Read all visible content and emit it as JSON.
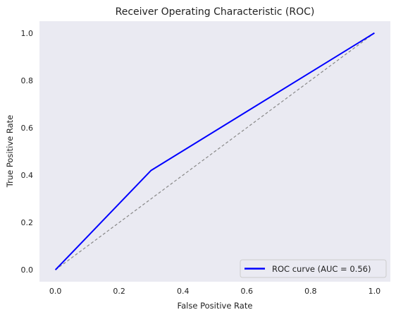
{
  "chart_data": {
    "type": "line",
    "title": "Receiver Operating Characteristic (ROC)",
    "xlabel": "False Positive Rate",
    "ylabel": "True Positive Rate",
    "xlim": [
      -0.05,
      1.05
    ],
    "ylim": [
      -0.05,
      1.05
    ],
    "xticks": [
      0.0,
      0.2,
      0.4,
      0.6,
      0.8,
      1.0
    ],
    "xtick_labels": [
      "0.0",
      "0.2",
      "0.4",
      "0.6",
      "0.8",
      "1.0"
    ],
    "yticks": [
      0.0,
      0.2,
      0.4,
      0.6,
      0.8,
      1.0
    ],
    "ytick_labels": [
      "0.0",
      "0.2",
      "0.4",
      "0.6",
      "0.8",
      "1.0"
    ],
    "grid": false,
    "legend_position": "lower-right",
    "background_color": "#eaeaf2",
    "series": [
      {
        "name": "ROC curve (AUC = 0.56)",
        "x": [
          0.0,
          0.3,
          1.0
        ],
        "y": [
          0.0,
          0.42,
          1.0
        ],
        "color": "#0000ff",
        "style": "solid"
      },
      {
        "x": [
          0.0,
          1.0
        ],
        "y": [
          0.0,
          1.0
        ],
        "color": "#888888",
        "style": "dashed"
      }
    ]
  }
}
